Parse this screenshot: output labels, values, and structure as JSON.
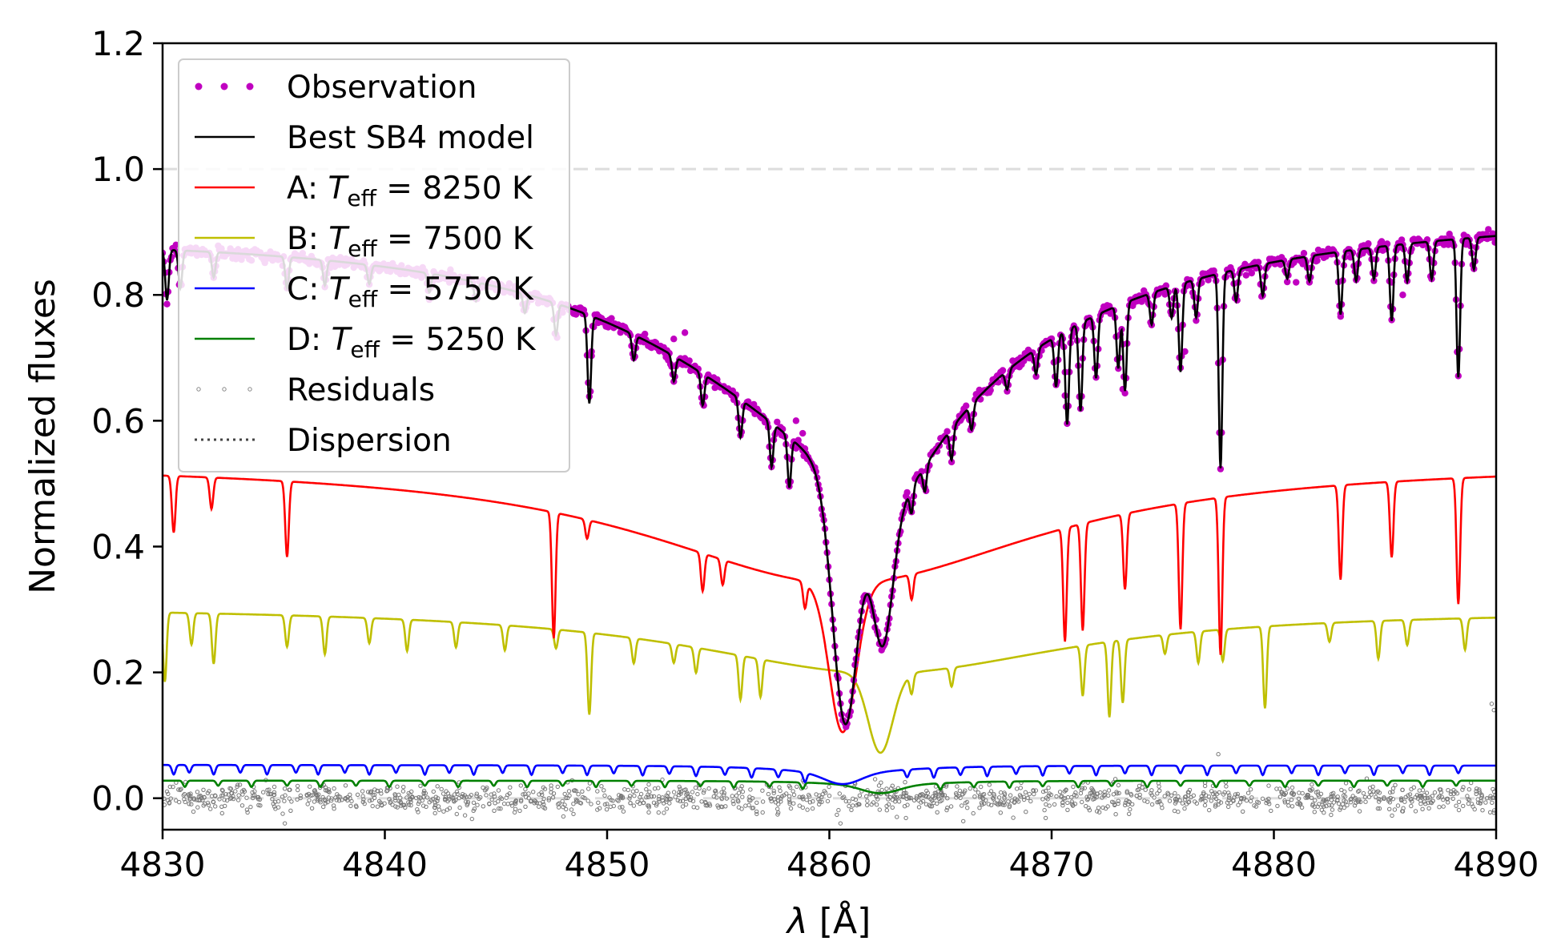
{
  "chart_data": {
    "type": "line",
    "xlabel_symbol": "λ",
    "xlabel_unit": "[Å]",
    "ylabel": "Normalized fluxes",
    "xlim": [
      4830,
      4890
    ],
    "ylim": [
      -0.05,
      1.2
    ],
    "xticks": [
      "4830",
      "4840",
      "4850",
      "4860",
      "4870",
      "4880",
      "4890"
    ],
    "yticks": [
      "0.0",
      "0.2",
      "0.4",
      "0.6",
      "0.8",
      "1.0",
      "1.2"
    ],
    "reference_lines": [
      1.0,
      0.0
    ],
    "grid": false,
    "legend_position": "upper-left",
    "legend": [
      {
        "key": "obs",
        "style": "dots",
        "color": "#c000c0",
        "prefix": "Observation",
        "symbol": "",
        "sub": "",
        "suffix": ""
      },
      {
        "key": "model",
        "style": "line",
        "color": "#000000",
        "prefix": "Best SB4 model",
        "symbol": "",
        "sub": "",
        "suffix": ""
      },
      {
        "key": "A",
        "style": "line",
        "color": "#ff0000",
        "prefix": "A: ",
        "symbol": "T",
        "sub": "eff",
        "suffix": " = 8250 K"
      },
      {
        "key": "B",
        "style": "line",
        "color": "#bfbf00",
        "prefix": "B: ",
        "symbol": "T",
        "sub": "eff",
        "suffix": " = 7500 K"
      },
      {
        "key": "C",
        "style": "line",
        "color": "#0000ff",
        "prefix": "C: ",
        "symbol": "T",
        "sub": "eff",
        "suffix": " = 5750 K"
      },
      {
        "key": "D",
        "style": "line",
        "color": "#008000",
        "prefix": "D: ",
        "symbol": "T",
        "sub": "eff",
        "suffix": " = 5250 K"
      },
      {
        "key": "res",
        "style": "smalldots",
        "color": "#888888",
        "prefix": "Residuals",
        "symbol": "",
        "sub": "",
        "suffix": ""
      },
      {
        "key": "disp",
        "style": "dotted",
        "color": "#444444",
        "prefix": "Dispersion",
        "symbol": "",
        "sub": "",
        "suffix": ""
      }
    ],
    "series": [
      {
        "key": "model",
        "color": "#000000",
        "continuum_edges": [
          0.905,
          0.93
        ],
        "hbeta": [
          {
            "center": 4860.7,
            "depth": 0.67,
            "width": 0.55,
            "wing": 10.5
          },
          {
            "center": 4862.4,
            "depth": 0.38,
            "width": 0.45,
            "wing": 3.0
          }
        ],
        "lines": [
          [
            4830.2,
            0.08
          ],
          [
            4830.8,
            0.06
          ],
          [
            4832.3,
            0.04
          ],
          [
            4835.6,
            0.05
          ],
          [
            4837.3,
            0.04
          ],
          [
            4839.3,
            0.03
          ],
          [
            4842.0,
            0.03
          ],
          [
            4844.1,
            0.03
          ],
          [
            4846.3,
            0.03
          ],
          [
            4847.7,
            0.05
          ],
          [
            4849.2,
            0.14
          ],
          [
            4851.2,
            0.04
          ],
          [
            4853.0,
            0.04
          ],
          [
            4854.3,
            0.05
          ],
          [
            4856.0,
            0.06
          ],
          [
            4857.4,
            0.07
          ],
          [
            4858.2,
            0.08
          ],
          [
            4863.7,
            0.04
          ],
          [
            4864.3,
            0.04
          ],
          [
            4865.5,
            0.05
          ],
          [
            4866.4,
            0.04
          ],
          [
            4868.0,
            0.03
          ],
          [
            4869.3,
            0.04
          ],
          [
            4870.2,
            0.08
          ],
          [
            4870.7,
            0.15
          ],
          [
            4871.3,
            0.14
          ],
          [
            4872.0,
            0.1
          ],
          [
            4873.0,
            0.1
          ],
          [
            4873.3,
            0.14
          ],
          [
            4874.5,
            0.05
          ],
          [
            4875.4,
            0.05
          ],
          [
            4875.8,
            0.14
          ],
          [
            4876.5,
            0.06
          ],
          [
            4877.6,
            0.31
          ],
          [
            4878.3,
            0.05
          ],
          [
            4879.5,
            0.05
          ],
          [
            4880.6,
            0.03
          ],
          [
            4881.6,
            0.04
          ],
          [
            4883.0,
            0.1
          ],
          [
            4883.7,
            0.05
          ],
          [
            4884.5,
            0.05
          ],
          [
            4885.3,
            0.12
          ],
          [
            4886.0,
            0.06
          ],
          [
            4887.1,
            0.06
          ],
          [
            4888.3,
            0.22
          ],
          [
            4889.0,
            0.05
          ]
        ]
      },
      {
        "key": "A",
        "color": "#ff0000",
        "continuum_edges": [
          0.535,
          0.535
        ],
        "hbeta": [
          {
            "center": 4860.6,
            "depth": 0.43,
            "width": 0.6,
            "wing": 11.0
          }
        ],
        "lines": [
          [
            4830.5,
            0.09
          ],
          [
            4832.2,
            0.05
          ],
          [
            4835.6,
            0.12
          ],
          [
            4847.6,
            0.2
          ],
          [
            4849.1,
            0.03
          ],
          [
            4854.3,
            0.06
          ],
          [
            4855.2,
            0.04
          ],
          [
            4858.9,
            0.04
          ],
          [
            4863.7,
            0.04
          ],
          [
            4870.6,
            0.18
          ],
          [
            4871.4,
            0.17
          ],
          [
            4873.3,
            0.12
          ],
          [
            4875.8,
            0.2
          ],
          [
            4877.6,
            0.25
          ],
          [
            4883.0,
            0.15
          ],
          [
            4885.3,
            0.12
          ],
          [
            4888.3,
            0.2
          ]
        ]
      },
      {
        "key": "B",
        "color": "#bfbf00",
        "continuum_edges": [
          0.305,
          0.3
        ],
        "hbeta": [
          {
            "center": 4862.3,
            "depth": 0.23,
            "width": 0.55,
            "wing": 10.5
          }
        ],
        "lines": [
          [
            4830.1,
            0.11
          ],
          [
            4831.3,
            0.05
          ],
          [
            4832.3,
            0.08
          ],
          [
            4835.6,
            0.05
          ],
          [
            4837.3,
            0.06
          ],
          [
            4839.3,
            0.04
          ],
          [
            4841.0,
            0.05
          ],
          [
            4843.2,
            0.04
          ],
          [
            4845.4,
            0.04
          ],
          [
            4847.7,
            0.03
          ],
          [
            4849.2,
            0.13
          ],
          [
            4851.2,
            0.04
          ],
          [
            4853.0,
            0.03
          ],
          [
            4854.0,
            0.04
          ],
          [
            4856.0,
            0.07
          ],
          [
            4856.9,
            0.06
          ],
          [
            4863.7,
            0.03
          ],
          [
            4865.5,
            0.03
          ],
          [
            4871.4,
            0.08
          ],
          [
            4872.6,
            0.12
          ],
          [
            4873.2,
            0.1
          ],
          [
            4875.1,
            0.03
          ],
          [
            4876.6,
            0.05
          ],
          [
            4877.7,
            0.05
          ],
          [
            4879.6,
            0.13
          ],
          [
            4882.5,
            0.03
          ],
          [
            4884.7,
            0.06
          ],
          [
            4886.0,
            0.04
          ],
          [
            4888.6,
            0.05
          ]
        ]
      },
      {
        "key": "C",
        "color": "#0000ff",
        "continuum_edges": [
          0.053,
          0.052
        ],
        "hbeta": [
          {
            "center": 4860.6,
            "depth": 0.03,
            "width": 0.8,
            "wing": 3.0
          }
        ],
        "lines": [
          [
            4830.5,
            0.015
          ],
          [
            4831.2,
            0.012
          ],
          [
            4832.3,
            0.015
          ],
          [
            4833.5,
            0.012
          ],
          [
            4834.7,
            0.015
          ],
          [
            4836.0,
            0.012
          ],
          [
            4837.0,
            0.015
          ],
          [
            4838.2,
            0.012
          ],
          [
            4839.3,
            0.015
          ],
          [
            4840.5,
            0.012
          ],
          [
            4841.8,
            0.015
          ],
          [
            4842.9,
            0.012
          ],
          [
            4844.0,
            0.015
          ],
          [
            4845.3,
            0.012
          ],
          [
            4846.6,
            0.015
          ],
          [
            4848.0,
            0.012
          ],
          [
            4849.1,
            0.015
          ],
          [
            4850.3,
            0.012
          ],
          [
            4851.6,
            0.015
          ],
          [
            4852.8,
            0.012
          ],
          [
            4854.0,
            0.015
          ],
          [
            4855.3,
            0.012
          ],
          [
            4856.5,
            0.015
          ],
          [
            4857.7,
            0.012
          ],
          [
            4858.9,
            0.015
          ],
          [
            4863.5,
            0.012
          ],
          [
            4864.7,
            0.015
          ],
          [
            4865.9,
            0.012
          ],
          [
            4867.1,
            0.015
          ],
          [
            4868.4,
            0.012
          ],
          [
            4869.6,
            0.015
          ],
          [
            4870.8,
            0.012
          ],
          [
            4872.0,
            0.015
          ],
          [
            4873.3,
            0.012
          ],
          [
            4874.5,
            0.015
          ],
          [
            4875.8,
            0.012
          ],
          [
            4877.0,
            0.015
          ],
          [
            4878.3,
            0.012
          ],
          [
            4879.5,
            0.015
          ],
          [
            4880.8,
            0.012
          ],
          [
            4882.0,
            0.015
          ],
          [
            4883.2,
            0.012
          ],
          [
            4884.5,
            0.015
          ],
          [
            4885.8,
            0.012
          ],
          [
            4887.0,
            0.015
          ],
          [
            4888.3,
            0.012
          ]
        ]
      },
      {
        "key": "D",
        "color": "#008000",
        "continuum_edges": [
          0.028,
          0.028
        ],
        "hbeta": [
          {
            "center": 4862.3,
            "depth": 0.02,
            "width": 0.8,
            "wing": 2.5
          }
        ],
        "lines": [
          [
            4831.0,
            0.01
          ],
          [
            4832.5,
            0.008
          ],
          [
            4834.0,
            0.01
          ],
          [
            4835.6,
            0.008
          ],
          [
            4837.1,
            0.01
          ],
          [
            4838.7,
            0.008
          ],
          [
            4840.2,
            0.01
          ],
          [
            4841.8,
            0.008
          ],
          [
            4843.3,
            0.01
          ],
          [
            4844.9,
            0.008
          ],
          [
            4846.4,
            0.01
          ],
          [
            4848.0,
            0.008
          ],
          [
            4849.5,
            0.01
          ],
          [
            4851.1,
            0.008
          ],
          [
            4852.6,
            0.01
          ],
          [
            4854.2,
            0.008
          ],
          [
            4855.7,
            0.01
          ],
          [
            4857.3,
            0.008
          ],
          [
            4858.8,
            0.01
          ],
          [
            4865.0,
            0.01
          ],
          [
            4866.5,
            0.008
          ],
          [
            4868.1,
            0.01
          ],
          [
            4869.6,
            0.008
          ],
          [
            4871.2,
            0.01
          ],
          [
            4872.7,
            0.008
          ],
          [
            4874.3,
            0.01
          ],
          [
            4875.8,
            0.008
          ],
          [
            4877.4,
            0.01
          ],
          [
            4878.9,
            0.008
          ],
          [
            4880.5,
            0.01
          ],
          [
            4882.0,
            0.008
          ],
          [
            4883.6,
            0.01
          ],
          [
            4885.1,
            0.008
          ],
          [
            4886.7,
            0.01
          ],
          [
            4888.2,
            0.008
          ]
        ]
      }
    ],
    "observation": {
      "color": "#c000c0",
      "follows": "model",
      "noise": 0.006,
      "outliers": [
        [
          4849.3,
          0.71
        ],
        [
          4853.0,
          0.73
        ],
        [
          4853.5,
          0.74
        ],
        [
          4858.5,
          0.6
        ],
        [
          4858.8,
          0.58
        ],
        [
          4870.6,
          0.64
        ],
        [
          4873.2,
          0.65
        ],
        [
          4876.0,
          0.71
        ],
        [
          4881.0,
          0.82
        ],
        [
          4883.0,
          0.77
        ],
        [
          4885.3,
          0.82
        ],
        [
          4885.8,
          0.8
        ]
      ]
    },
    "residuals": {
      "color": "#777777",
      "center": 0.0,
      "spread": 0.025,
      "outliers": [
        [
          4889.8,
          0.15
        ],
        [
          4889.9,
          0.14
        ],
        [
          4877.5,
          0.07
        ],
        [
          4835.5,
          -0.04
        ],
        [
          4860.5,
          -0.04
        ]
      ]
    }
  }
}
